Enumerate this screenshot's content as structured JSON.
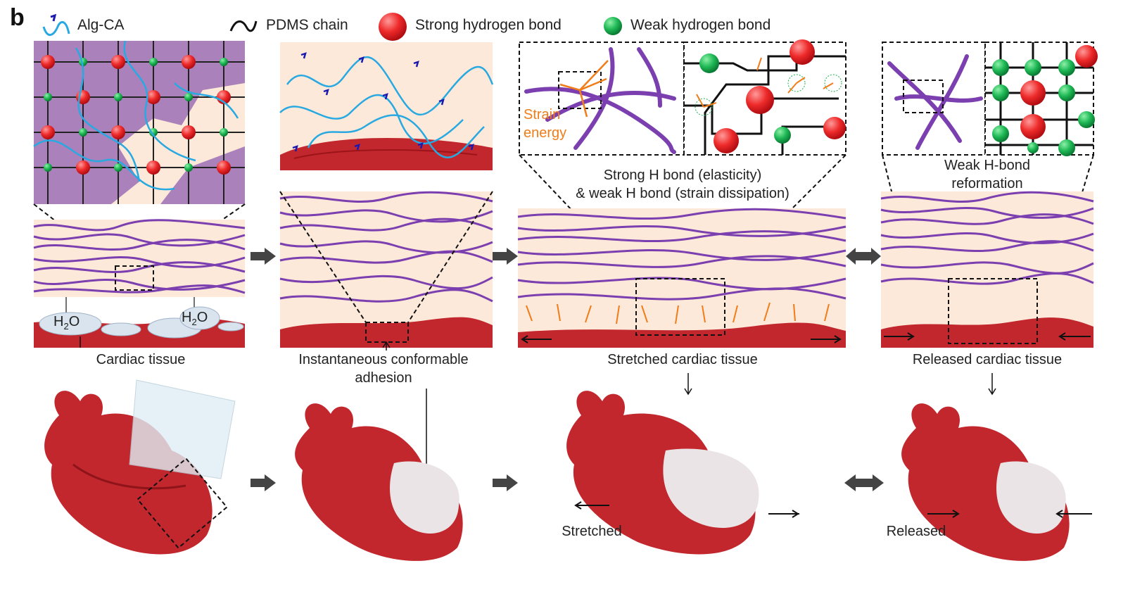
{
  "panel_letter": "b",
  "legend": {
    "alg_ca": "Alg-CA",
    "pdms_chain": "PDMS chain",
    "strong_bond": "Strong hydrogen bond",
    "weak_bond": "Weak hydrogen bond"
  },
  "labels": {
    "h2o": "H",
    "h2o_sub": "2",
    "h2o_o": "O",
    "strain_energy_1": "Strain",
    "strain_energy_2": "energy",
    "strong_weak_1": "Strong H bond (elasticity)",
    "strong_weak_2": "& weak H bond (strain dissipation)",
    "weak_reform_1": "Weak H-bond",
    "weak_reform_2": "reformation"
  },
  "captions": {
    "cardiac_tissue": "Cardiac tissue",
    "instant_1": "Instantaneous conformable",
    "instant_2": "adhesion",
    "stretched_tissue": "Stretched cardiac tissue",
    "released_tissue": "Released cardiac tissue",
    "stretched": "Stretched",
    "released": "Released"
  },
  "colors": {
    "alg": "#29a9e1",
    "pdms": "#111111",
    "strong": "#e8232a",
    "weak": "#19b04b",
    "purple": "#7b3fb0",
    "tissue": "#c1272d",
    "cream": "#fde9d9",
    "orange": "#f07d1a",
    "arrow_gray": "#444444"
  }
}
